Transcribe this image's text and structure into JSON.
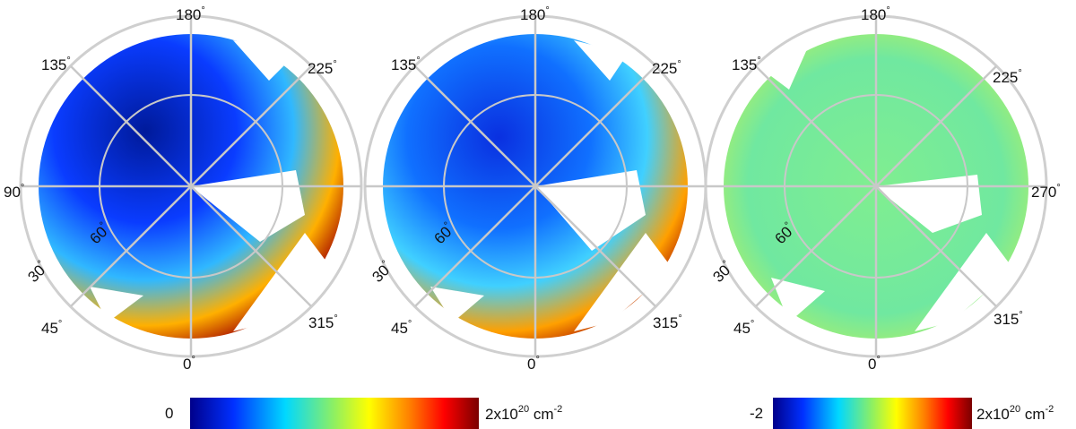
{
  "panels": [
    {
      "name": "left",
      "angle_labels": [
        "180",
        "225",
        "135",
        "90",
        "30",
        "45",
        "0",
        "315"
      ],
      "inner_label": "60",
      "degree_symbol": "°"
    },
    {
      "name": "middle",
      "angle_labels": [
        "180",
        "225",
        "135",
        "30",
        "45",
        "0",
        "315"
      ],
      "inner_label": "60",
      "degree_symbol": "°"
    },
    {
      "name": "right",
      "angle_labels": [
        "180",
        "225",
        "135",
        "270",
        "30",
        "45",
        "0",
        "315"
      ],
      "inner_label": "60",
      "degree_symbol": "°"
    }
  ],
  "colorbars": [
    {
      "name": "column-density",
      "min_label": "0",
      "max_label_prefix": "2x10",
      "max_label_exp": "20",
      "max_label_unit": " cm",
      "max_label_unit_exp": "-2",
      "colormap": [
        "#00008b",
        "#0030ff",
        "#00d8ff",
        "#90f060",
        "#ffff00",
        "#ff8000",
        "#ff0000",
        "#7a0000"
      ]
    },
    {
      "name": "difference",
      "min_label": "-2",
      "max_label_prefix": "2x10",
      "max_label_exp": "20",
      "max_label_unit": " cm",
      "max_label_unit_exp": "-2",
      "colormap": [
        "#00008b",
        "#0030ff",
        "#00d8ff",
        "#90f060",
        "#ffff00",
        "#ff8000",
        "#ff0000",
        "#7a0000"
      ]
    }
  ]
}
